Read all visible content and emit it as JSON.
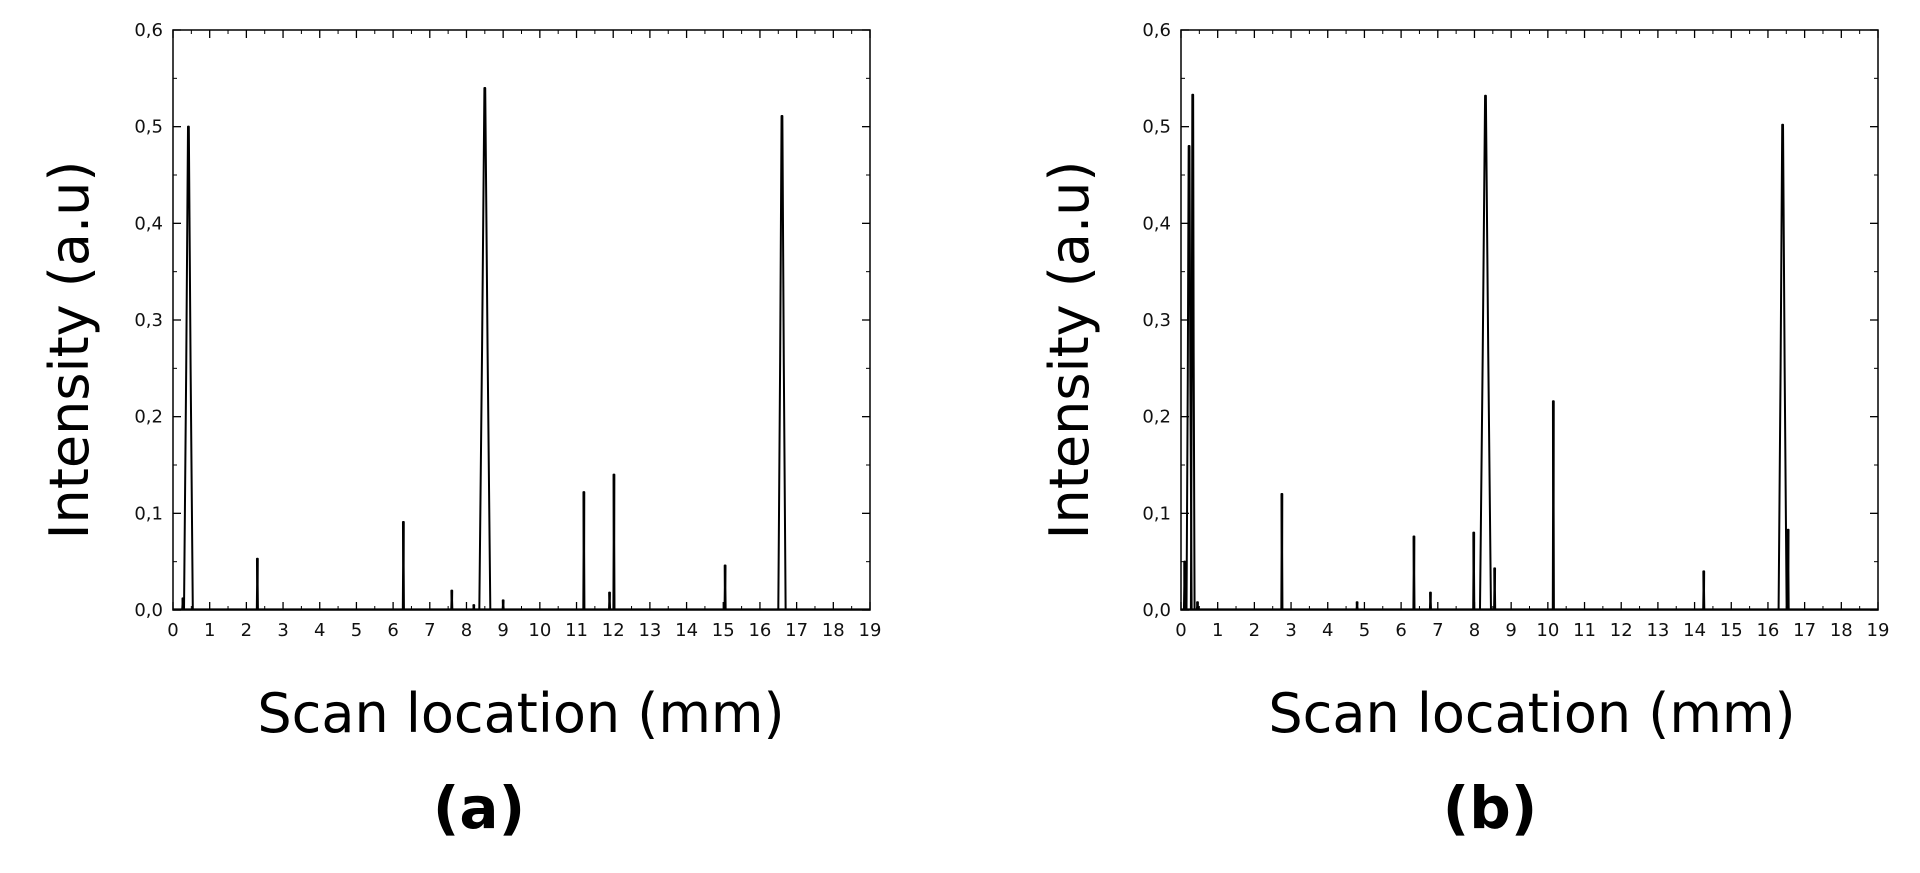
{
  "chart_data": [
    {
      "type": "line",
      "panel_label": "(a)",
      "xlabel": "Scan location (mm)",
      "ylabel": "Intensity (a.u)",
      "xlim": [
        0,
        19
      ],
      "ylim": [
        0,
        0.6
      ],
      "x_ticks": [
        "0",
        "1",
        "2",
        "3",
        "4",
        "5",
        "6",
        "7",
        "8",
        "9",
        "10",
        "11",
        "12",
        "13",
        "14",
        "15",
        "16",
        "17",
        "18",
        "19"
      ],
      "y_ticks": [
        "0,0",
        "0,1",
        "0,2",
        "0,3",
        "0,4",
        "0,5",
        "0,6"
      ],
      "grid": false,
      "peaks": [
        {
          "x": 0.27,
          "y": 0.012,
          "w": 0.04
        },
        {
          "x": 0.42,
          "y": 0.5,
          "w": 0.24
        },
        {
          "x": 2.3,
          "y": 0.053,
          "w": 0.03
        },
        {
          "x": 6.28,
          "y": 0.091,
          "w": 0.03
        },
        {
          "x": 7.6,
          "y": 0.02,
          "w": 0.03
        },
        {
          "x": 8.2,
          "y": 0.005,
          "w": 0.03
        },
        {
          "x": 8.5,
          "y": 0.54,
          "w": 0.3
        },
        {
          "x": 9.0,
          "y": 0.01,
          "w": 0.03
        },
        {
          "x": 11.2,
          "y": 0.122,
          "w": 0.03
        },
        {
          "x": 11.9,
          "y": 0.018,
          "w": 0.03
        },
        {
          "x": 12.02,
          "y": 0.14,
          "w": 0.03
        },
        {
          "x": 15.05,
          "y": 0.046,
          "w": 0.03
        },
        {
          "x": 16.6,
          "y": 0.511,
          "w": 0.2
        }
      ]
    },
    {
      "type": "line",
      "panel_label": "(b)",
      "xlabel": "Scan location (mm)",
      "ylabel": "Intensity (a.u)",
      "xlim": [
        0,
        19
      ],
      "ylim": [
        0,
        0.6
      ],
      "x_ticks": [
        "0",
        "1",
        "2",
        "3",
        "4",
        "5",
        "6",
        "7",
        "8",
        "9",
        "10",
        "11",
        "12",
        "13",
        "14",
        "15",
        "16",
        "17",
        "18",
        "19"
      ],
      "y_ticks": [
        "0,0",
        "0,1",
        "0,2",
        "0,3",
        "0,4",
        "0,5",
        "0,6"
      ],
      "grid": false,
      "peaks": [
        {
          "x": 0.1,
          "y": 0.05,
          "w": 0.04
        },
        {
          "x": 0.22,
          "y": 0.48,
          "w": 0.14
        },
        {
          "x": 0.32,
          "y": 0.533,
          "w": 0.1
        },
        {
          "x": 0.45,
          "y": 0.008,
          "w": 0.04
        },
        {
          "x": 2.75,
          "y": 0.12,
          "w": 0.03
        },
        {
          "x": 4.8,
          "y": 0.008,
          "w": 0.03
        },
        {
          "x": 6.35,
          "y": 0.076,
          "w": 0.03
        },
        {
          "x": 6.8,
          "y": 0.018,
          "w": 0.03
        },
        {
          "x": 7.98,
          "y": 0.08,
          "w": 0.03
        },
        {
          "x": 8.3,
          "y": 0.532,
          "w": 0.3
        },
        {
          "x": 8.55,
          "y": 0.043,
          "w": 0.03
        },
        {
          "x": 10.15,
          "y": 0.216,
          "w": 0.03
        },
        {
          "x": 14.25,
          "y": 0.04,
          "w": 0.03
        },
        {
          "x": 16.4,
          "y": 0.502,
          "w": 0.22
        },
        {
          "x": 16.55,
          "y": 0.083,
          "w": 0.03
        }
      ]
    }
  ]
}
